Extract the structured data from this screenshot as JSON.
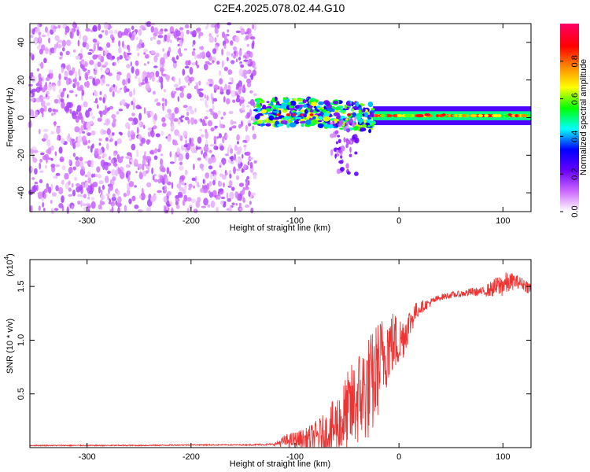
{
  "title": "C2E4.2025.078.02.44.G10",
  "chart_data": [
    {
      "type": "heatmap",
      "xlabel": "Height of straight line (km)",
      "ylabel": "Frequency (Hz)",
      "xlim": [
        -355,
        127
      ],
      "ylim": [
        -50,
        50
      ],
      "xticks": [
        "-300",
        "-200",
        "-100",
        "0",
        "100"
      ],
      "xtick_values": [
        -300,
        -200,
        -100,
        0,
        100
      ],
      "yticks": [
        "-40",
        "-20",
        "0",
        "20",
        "40"
      ],
      "ytick_values": [
        -40,
        -20,
        0,
        20,
        40
      ],
      "colorbar": {
        "label": "Normalized spectral amplitude",
        "range": [
          0,
          1
        ],
        "ticks": [
          "0.0",
          "0.2",
          "0.4",
          "0.6",
          "0.8"
        ],
        "tick_values": [
          0.0,
          0.2,
          0.4,
          0.6,
          0.8
        ],
        "colors": [
          "#ffffff",
          "#cc66ff",
          "#6600ff",
          "#0000ff",
          "#00ffff",
          "#00ff00",
          "#ffff00",
          "#ff8800",
          "#ff0000",
          "#ff0066"
        ]
      },
      "regions": [
        {
          "name": "noise",
          "x_range": [
            -355,
            -138
          ],
          "freq_range": [
            -50,
            50
          ],
          "amplitude": 0.1
        },
        {
          "name": "transition",
          "x_range": [
            -138,
            -25
          ],
          "freq_center": 3,
          "freq_spread": 6,
          "amplitude": 0.45
        },
        {
          "name": "tail",
          "x_range": [
            -65,
            -40
          ],
          "freq_range": [
            -30,
            0
          ],
          "amplitude": 0.12
        },
        {
          "name": "signal",
          "x_range": [
            -25,
            127
          ],
          "freq_center": 1,
          "freq_spread": 2,
          "amplitude": 0.55
        }
      ]
    },
    {
      "type": "line",
      "xlabel": "Height of straight line (km)",
      "ylabel": "SNR (10 * v/v)",
      "scale_label": "(x10",
      "scale_exp": "4",
      "xlim": [
        -355,
        127
      ],
      "ylim": [
        0,
        1.75
      ],
      "xticks": [
        "-300",
        "-200",
        "-100",
        "0",
        "100"
      ],
      "xtick_values": [
        -300,
        -200,
        -100,
        0,
        100
      ],
      "yticks": [
        "0.5",
        "1.0",
        "1.5"
      ],
      "ytick_values": [
        0.5,
        1.0,
        1.5
      ],
      "series": [
        {
          "color": "#ee3333",
          "x": [
            -355,
            -300,
            -250,
            -200,
            -150,
            -120,
            -110,
            -100,
            -90,
            -80,
            -70,
            -60,
            -50,
            -40,
            -30,
            -25,
            -20,
            -15,
            -10,
            -5,
            0,
            5,
            10,
            15,
            20,
            30,
            40,
            50,
            60,
            70,
            80,
            90,
            95,
            100,
            105,
            110,
            115,
            120,
            127
          ],
          "y": [
            0.02,
            0.02,
            0.02,
            0.025,
            0.025,
            0.03,
            0.06,
            0.07,
            0.08,
            0.1,
            0.13,
            0.2,
            0.3,
            0.45,
            0.55,
            0.6,
            0.75,
            0.85,
            0.95,
            0.98,
            0.98,
            1.05,
            1.15,
            1.25,
            1.3,
            1.35,
            1.4,
            1.42,
            1.43,
            1.45,
            1.45,
            1.48,
            1.5,
            1.52,
            1.53,
            1.55,
            1.54,
            1.52,
            1.48
          ],
          "spread": [
            0.005,
            0.005,
            0.005,
            0.005,
            0.005,
            0.01,
            0.06,
            0.08,
            0.1,
            0.15,
            0.2,
            0.3,
            0.4,
            0.45,
            0.5,
            0.5,
            0.45,
            0.4,
            0.35,
            0.3,
            0.25,
            0.2,
            0.15,
            0.1,
            0.06,
            0.04,
            0.03,
            0.03,
            0.03,
            0.04,
            0.04,
            0.08,
            0.1,
            0.12,
            0.1,
            0.08,
            0.06,
            0.06,
            0.06
          ]
        }
      ]
    }
  ]
}
